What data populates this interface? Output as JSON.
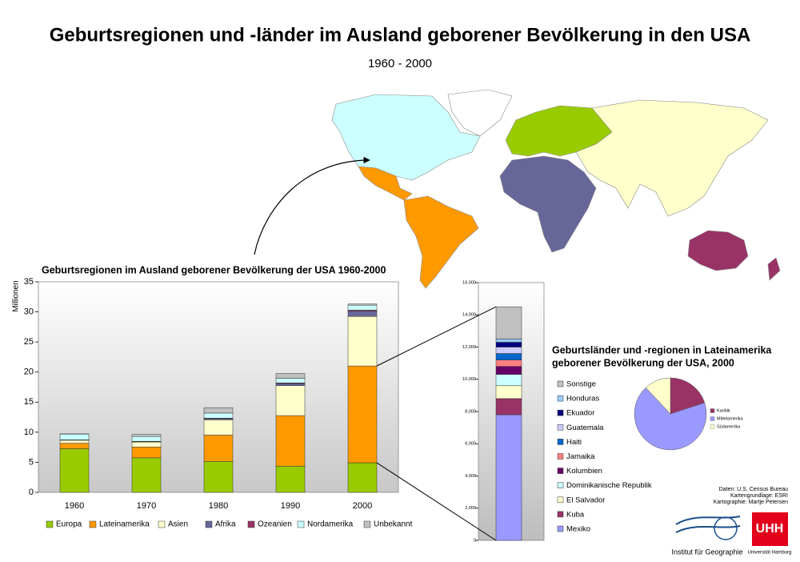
{
  "title": "Geburtsregionen und -länder im Ausland geborener Bevölkerung in den USA",
  "subtitle": "1960 - 2000",
  "chart_data": [
    {
      "type": "bar",
      "stacked": true,
      "title": "Geburtsregionen im Ausland geborener Bevölkerung der USA 1960-2000",
      "y_label": "Millionen",
      "categories": [
        "1960",
        "1970",
        "1980",
        "1990",
        "2000"
      ],
      "series": [
        {
          "name": "Europa",
          "color": "#99cc00",
          "values": [
            7.26,
            5.74,
            5.15,
            4.35,
            4.92
          ]
        },
        {
          "name": "Lateinamerika",
          "color": "#ff9900",
          "values": [
            0.91,
            1.8,
            4.37,
            8.41,
            16.09
          ]
        },
        {
          "name": "Asien",
          "color": "#ffffcc",
          "values": [
            0.49,
            0.82,
            2.54,
            4.98,
            8.23
          ]
        },
        {
          "name": "Afrika",
          "color": "#666699",
          "values": [
            0.04,
            0.08,
            0.2,
            0.36,
            0.88
          ]
        },
        {
          "name": "Ozeanien",
          "color": "#993366",
          "values": [
            0.03,
            0.04,
            0.08,
            0.1,
            0.17
          ]
        },
        {
          "name": "Nordamerika",
          "color": "#ccffff",
          "values": [
            0.95,
            0.81,
            0.84,
            0.76,
            0.83
          ]
        },
        {
          "name": "Unbekannt",
          "color": "#c0c0c0",
          "values": [
            0.05,
            0.33,
            0.9,
            0.8,
            0.2
          ]
        }
      ],
      "ylim": [
        0,
        35
      ],
      "yticks": [
        0,
        5,
        10,
        15,
        20,
        25,
        30,
        35
      ],
      "grid": false,
      "legend": "bottom"
    },
    {
      "type": "bar",
      "stacked": true,
      "title": [
        "Geburtsländer und -regionen in Lateinamerika",
        "geborener Bevölkerung der USA, 2000"
      ],
      "series": [
        {
          "name": "Mexiko",
          "color": "#9999ff",
          "values": [
            7800
          ]
        },
        {
          "name": "Kuba",
          "color": "#993366",
          "values": [
            1000
          ]
        },
        {
          "name": "El Salvador",
          "color": "#ffffcc",
          "values": [
            800
          ]
        },
        {
          "name": "Dominikanische Republik",
          "color": "#ccffff",
          "values": [
            700
          ]
        },
        {
          "name": "Kolumbien",
          "color": "#660066",
          "values": [
            500
          ]
        },
        {
          "name": "Jamaika",
          "color": "#ff8080",
          "values": [
            400
          ]
        },
        {
          "name": "Haiti",
          "color": "#0066cc",
          "values": [
            400
          ]
        },
        {
          "name": "Guatemala",
          "color": "#ccccff",
          "values": [
            400
          ]
        },
        {
          "name": "Ekuador",
          "color": "#000080",
          "values": [
            300
          ]
        },
        {
          "name": "Honduras",
          "color": "#99ccff",
          "values": [
            200
          ]
        },
        {
          "name": "Sonstige",
          "color": "#c0c0c0",
          "values": [
            2000
          ]
        }
      ],
      "ylim": [
        0,
        16000
      ],
      "yticks": [
        0,
        {
          "value": 2000,
          "label": "2,000"
        },
        {
          "value": 4000,
          "label": "4,000"
        },
        {
          "value": 6000,
          "label": "6,000"
        },
        {
          "value": 8000,
          "label": "8,000"
        },
        {
          "value": 10000,
          "label": "10,000"
        },
        {
          "value": 12000,
          "label": "12,000"
        },
        {
          "value": 14000,
          "label": "14,000"
        },
        {
          "value": 16000,
          "label": "16,000"
        }
      ],
      "grid": false,
      "legend": "right"
    },
    {
      "type": "pie",
      "categories": [
        "Karibik",
        "Mittelamerika",
        "Südamerika"
      ],
      "values": [
        20,
        68,
        12
      ],
      "colors": [
        "#993366",
        "#9999ff",
        "#ffffcc"
      ],
      "legend": "right"
    }
  ],
  "credits": [
    "Daten: U.S. Census Bureau",
    "Kartengrundlage: ESRI",
    "Kartographie: Martje Petersen"
  ],
  "logos": {
    "institute": "Institut für Geographie",
    "mark": "UHH",
    "university": "Universität Hamburg"
  }
}
